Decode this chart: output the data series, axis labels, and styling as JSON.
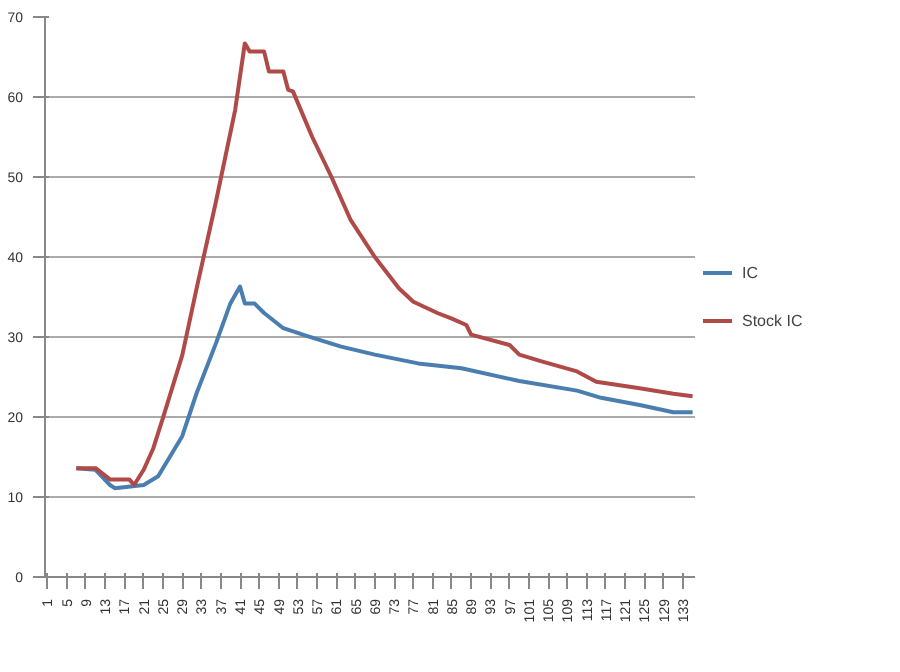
{
  "chart_data": {
    "type": "line",
    "xlim": [
      0.5,
      135.5
    ],
    "ylim": [
      0,
      70
    ],
    "xticks": [
      1,
      5,
      9,
      13,
      17,
      21,
      25,
      29,
      33,
      37,
      41,
      45,
      49,
      53,
      57,
      61,
      65,
      69,
      73,
      77,
      81,
      85,
      89,
      93,
      97,
      101,
      105,
      109,
      113,
      117,
      121,
      125,
      129,
      133
    ],
    "yticks": [
      0,
      10,
      20,
      30,
      40,
      50,
      60,
      70
    ],
    "grid": "y",
    "legend": "right",
    "marker": "none",
    "line_style": "solid",
    "series": [
      {
        "name": "IC",
        "color": "#4a7eb0",
        "x": [
          7,
          11,
          14,
          15,
          21,
          24,
          29,
          32,
          36,
          39,
          41,
          42,
          44,
          46,
          50,
          55,
          62,
          69,
          78,
          87,
          99,
          111,
          116,
          124,
          131,
          135
        ],
        "values": [
          13.6,
          13.4,
          11.5,
          11.1,
          11.5,
          12.6,
          17.6,
          23,
          29.2,
          34.2,
          36.3,
          34.2,
          34.2,
          33,
          31.1,
          30.1,
          28.8,
          27.8,
          26.7,
          26.1,
          24.5,
          23.3,
          22.4,
          21.5,
          20.6,
          20.6
        ]
      },
      {
        "name": "Stock IC",
        "color": "#b04a48",
        "x": [
          7,
          11,
          14,
          18,
          19,
          21,
          23,
          25,
          29,
          32,
          36,
          40,
          42,
          43,
          46,
          47,
          50,
          51,
          52,
          56,
          60,
          64,
          69,
          74,
          77,
          82,
          85,
          88,
          89,
          97,
          99,
          104,
          111,
          115,
          124,
          131,
          135
        ],
        "values": [
          13.6,
          13.6,
          12.2,
          12.2,
          11.5,
          13.4,
          16.1,
          19.9,
          27.7,
          36.1,
          46.9,
          58.4,
          66.7,
          65.7,
          65.7,
          63.2,
          63.2,
          60.9,
          60.7,
          55,
          50,
          44.6,
          40,
          36.1,
          34.4,
          33,
          32.3,
          31.5,
          30.3,
          29,
          27.8,
          26.9,
          25.7,
          24.4,
          23.6,
          22.9,
          22.6
        ]
      }
    ]
  }
}
